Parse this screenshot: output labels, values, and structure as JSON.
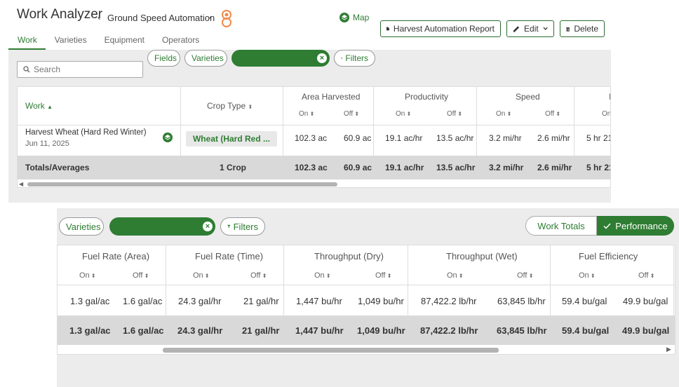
{
  "header": {
    "title": "Work Analyzer",
    "breadcrumb": "Ground Speed Automation",
    "map_label": "Map",
    "report_button": "Harvest Automation Report",
    "edit_button": "Edit",
    "delete_button": "Delete"
  },
  "tabs": [
    "Work",
    "Varieties",
    "Equipment",
    "Operators"
  ],
  "filters": {
    "search_placeholder": "Search",
    "fields_label": "Fields",
    "varieties_label": "Varieties",
    "filters_label": "Filters"
  },
  "table1": {
    "work_header": "Work",
    "crop_header": "Crop Type",
    "groups": [
      "Area Harvested",
      "Productivity",
      "Speed"
    ],
    "on_label": "On",
    "off_label": "Off",
    "row": {
      "name": "Harvest Wheat (Hard Red Winter)",
      "date": "Jun 11, 2025",
      "crop": "Wheat (Hard Red ...",
      "area_on": "102.3 ac",
      "area_off": "60.9 ac",
      "prod_on": "19.1 ac/hr",
      "prod_off": "13.5 ac/hr",
      "speed_on": "3.2 mi/hr",
      "speed_off": "2.6 mi/hr",
      "time_on": "5 hr 21"
    },
    "totals": {
      "label": "Totals/Averages",
      "crop": "1 Crop",
      "area_on": "102.3 ac",
      "area_off": "60.9 ac",
      "prod_on": "19.1 ac/hr",
      "prod_off": "13.5 ac/hr",
      "speed_on": "3.2 mi/hr",
      "speed_off": "2.6 mi/hr",
      "time_on": "5 hr 21"
    }
  },
  "panel2": {
    "varieties_label": "Varieties",
    "filters_label": "Filters",
    "work_totals_label": "Work Totals",
    "performance_label": "Performance",
    "groups": [
      "Fuel Rate (Area)",
      "Fuel Rate (Time)",
      "Throughput (Dry)",
      "Throughput (Wet)",
      "Fuel Efficiency"
    ],
    "on_label": "On",
    "off_label": "Off",
    "row": [
      "1.3 gal/ac",
      "1.6 gal/ac",
      "24.3 gal/hr",
      "21 gal/hr",
      "1,447 bu/hr",
      "1,049 bu/hr",
      "87,422.2 lb/hr",
      "63,845 lb/hr",
      "59.4 bu/gal",
      "49.9 bu/gal"
    ],
    "totals": [
      "1.3 gal/ac",
      "1.6 gal/ac",
      "24.3 gal/hr",
      "21 gal/hr",
      "1,447 bu/hr",
      "1,049 bu/hr",
      "87,422.2 lb/hr",
      "63,845 lb/hr",
      "59.4 bu/gal",
      "49.9 bu/gal"
    ]
  },
  "colors": {
    "accent": "#2e7d32"
  }
}
